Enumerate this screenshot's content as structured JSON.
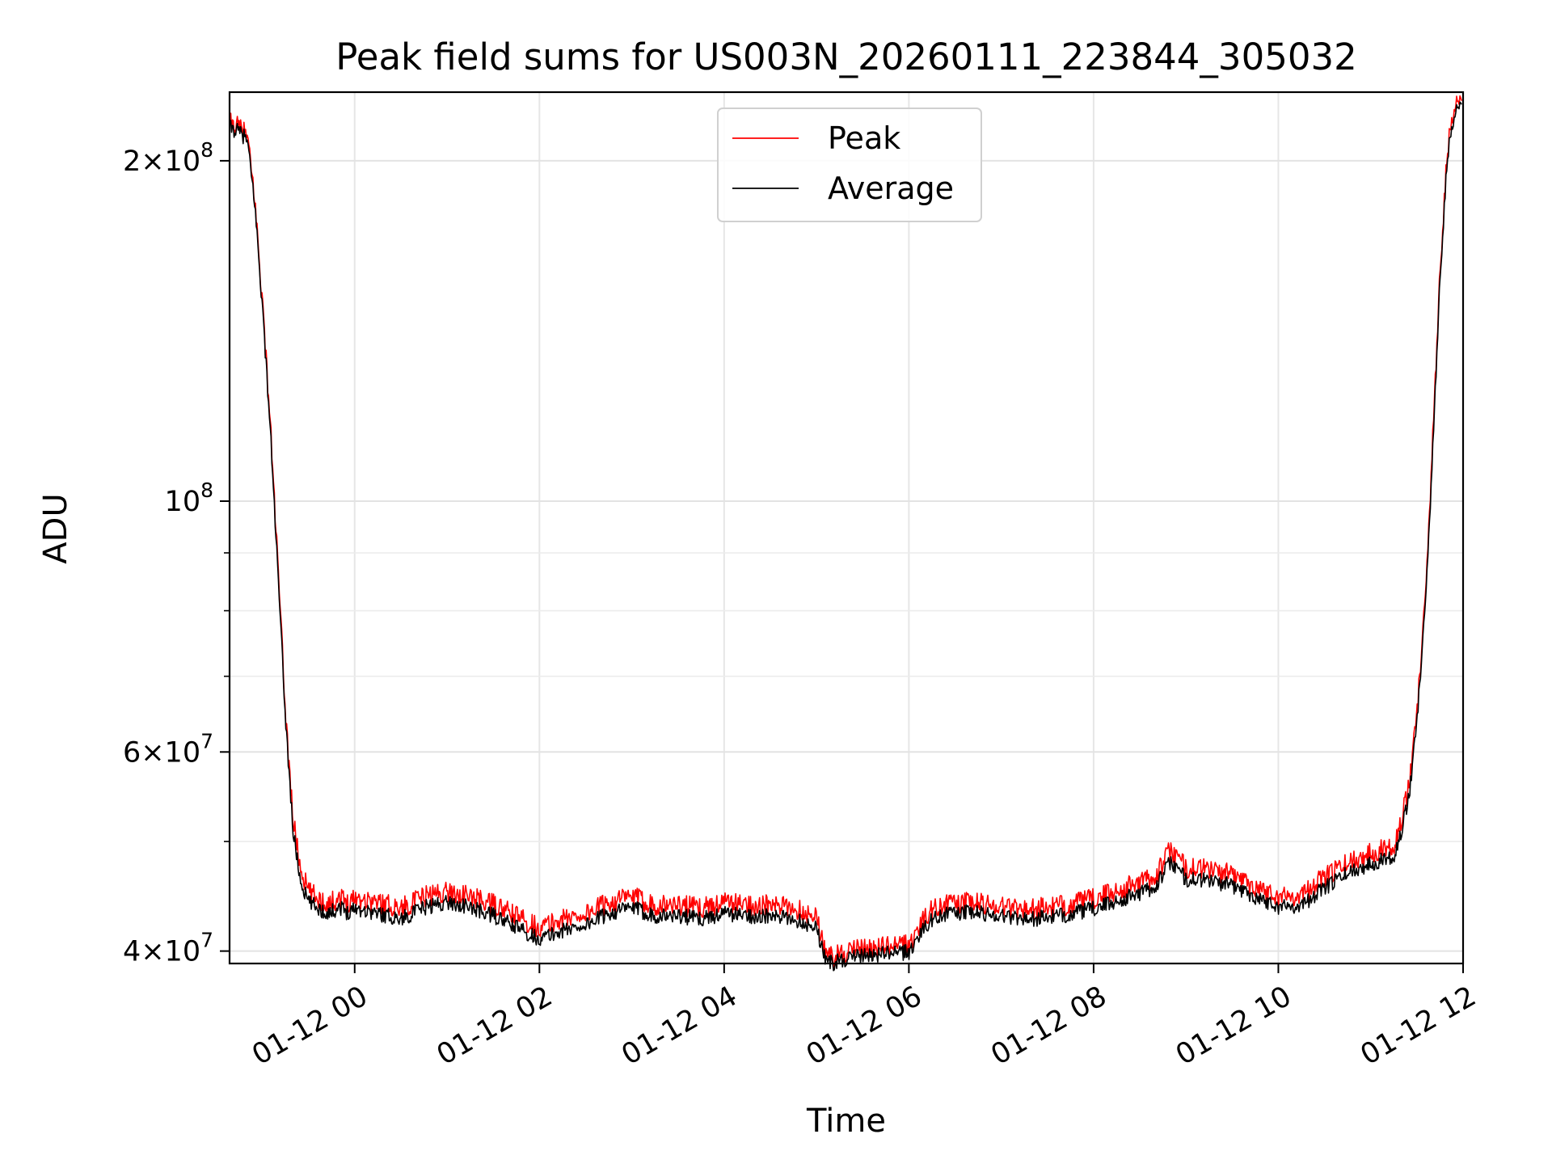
{
  "chart_data": {
    "type": "line",
    "title": "Peak field sums for US003N_20260111_223844_305032",
    "xlabel": "Time",
    "ylabel": "ADU",
    "yscale": "log",
    "grid": true,
    "legend_placement": "top-center",
    "x_ticks": [
      "01-12 00",
      "01-12 02",
      "01-12 04",
      "01-12 06",
      "01-12 08",
      "01-12 10",
      "01-12 12"
    ],
    "y_ticks": [
      {
        "value": 40000000,
        "mantissa": "4",
        "exponent": "7"
      },
      {
        "value": 60000000,
        "mantissa": "6",
        "exponent": "7"
      },
      {
        "value": 100000000,
        "mantissa": "",
        "exponent": "8"
      },
      {
        "value": 200000000,
        "mantissa": "2",
        "exponent": "8"
      }
    ],
    "xlim": [
      "2026-01-11 22:38:44",
      "2026-01-12 12:00:00"
    ],
    "ylim": [
      39000000,
      230000000
    ],
    "series": [
      {
        "name": "Peak",
        "color": "#ff0000",
        "x": [
          "2026-01-11 22:39",
          "2026-01-11 22:45",
          "2026-01-11 22:50",
          "2026-01-11 22:55",
          "2026-01-11 23:00",
          "2026-01-11 23:05",
          "2026-01-11 23:10",
          "2026-01-11 23:15",
          "2026-01-11 23:20",
          "2026-01-11 23:25",
          "2026-01-11 23:30",
          "2026-01-11 23:35",
          "2026-01-11 23:40",
          "2026-01-11 23:45",
          "2026-01-11 23:50",
          "2026-01-11 23:55",
          "2026-01-12 00:00",
          "2026-01-12 00:15",
          "2026-01-12 00:30",
          "2026-01-12 00:45",
          "2026-01-12 01:00",
          "2026-01-12 01:15",
          "2026-01-12 01:30",
          "2026-01-12 01:45",
          "2026-01-12 02:00",
          "2026-01-12 02:15",
          "2026-01-12 02:30",
          "2026-01-12 02:45",
          "2026-01-12 03:00",
          "2026-01-12 03:15",
          "2026-01-12 03:30",
          "2026-01-12 03:45",
          "2026-01-12 04:00",
          "2026-01-12 04:15",
          "2026-01-12 04:30",
          "2026-01-12 04:45",
          "2026-01-12 05:00",
          "2026-01-12 05:05",
          "2026-01-12 05:10",
          "2026-01-12 05:20",
          "2026-01-12 05:30",
          "2026-01-12 05:45",
          "2026-01-12 06:00",
          "2026-01-12 06:10",
          "2026-01-12 06:20",
          "2026-01-12 06:40",
          "2026-01-12 07:00",
          "2026-01-12 07:20",
          "2026-01-12 07:40",
          "2026-01-12 08:00",
          "2026-01-12 08:20",
          "2026-01-12 08:40",
          "2026-01-12 08:50",
          "2026-01-12 09:00",
          "2026-01-12 09:15",
          "2026-01-12 09:30",
          "2026-01-12 09:45",
          "2026-01-12 10:00",
          "2026-01-12 10:15",
          "2026-01-12 10:30",
          "2026-01-12 10:45",
          "2026-01-12 11:00",
          "2026-01-12 11:15",
          "2026-01-12 11:20",
          "2026-01-12 11:25",
          "2026-01-12 11:30",
          "2026-01-12 11:35",
          "2026-01-12 11:40",
          "2026-01-12 11:45",
          "2026-01-12 11:50",
          "2026-01-12 11:55",
          "2026-01-12 11:59"
        ],
        "values": [
          215000000,
          213000000,
          210000000,
          185000000,
          150000000,
          118000000,
          88000000,
          65000000,
          52000000,
          47000000,
          45000000,
          44500000,
          44000000,
          44000000,
          44500000,
          44000000,
          44500000,
          44000000,
          43500000,
          44500000,
          45000000,
          44500000,
          43800000,
          42800000,
          41800000,
          42500000,
          43000000,
          44000000,
          44500000,
          43800000,
          43800000,
          43500000,
          44000000,
          43800000,
          43700000,
          43500000,
          42800000,
          40000000,
          39300000,
          39800000,
          40000000,
          40200000,
          40300000,
          42700000,
          43800000,
          44000000,
          43700000,
          43400000,
          43700000,
          44300000,
          45300000,
          46400000,
          49000000,
          47200000,
          47100000,
          46500000,
          45500000,
          44500000,
          44700000,
          46300000,
          47700000,
          48700000,
          49500000,
          52000000,
          56000000,
          65000000,
          80000000,
          110000000,
          160000000,
          205000000,
          222000000,
          226000000
        ]
      },
      {
        "name": "Average",
        "color": "#000000",
        "x": [
          "2026-01-11 22:39",
          "2026-01-11 22:45",
          "2026-01-11 22:50",
          "2026-01-11 22:55",
          "2026-01-11 23:00",
          "2026-01-11 23:05",
          "2026-01-11 23:10",
          "2026-01-11 23:15",
          "2026-01-11 23:20",
          "2026-01-11 23:25",
          "2026-01-11 23:30",
          "2026-01-11 23:35",
          "2026-01-11 23:40",
          "2026-01-11 23:45",
          "2026-01-11 23:50",
          "2026-01-11 23:55",
          "2026-01-12 00:00",
          "2026-01-12 00:15",
          "2026-01-12 00:30",
          "2026-01-12 00:45",
          "2026-01-12 01:00",
          "2026-01-12 01:15",
          "2026-01-12 01:30",
          "2026-01-12 01:45",
          "2026-01-12 02:00",
          "2026-01-12 02:15",
          "2026-01-12 02:30",
          "2026-01-12 02:45",
          "2026-01-12 03:00",
          "2026-01-12 03:15",
          "2026-01-12 03:30",
          "2026-01-12 03:45",
          "2026-01-12 04:00",
          "2026-01-12 04:15",
          "2026-01-12 04:30",
          "2026-01-12 04:45",
          "2026-01-12 05:00",
          "2026-01-12 05:05",
          "2026-01-12 05:10",
          "2026-01-12 05:20",
          "2026-01-12 05:30",
          "2026-01-12 05:45",
          "2026-01-12 06:00",
          "2026-01-12 06:10",
          "2026-01-12 06:20",
          "2026-01-12 06:40",
          "2026-01-12 07:00",
          "2026-01-12 07:20",
          "2026-01-12 07:40",
          "2026-01-12 08:00",
          "2026-01-12 08:20",
          "2026-01-12 08:40",
          "2026-01-12 08:50",
          "2026-01-12 09:00",
          "2026-01-12 09:15",
          "2026-01-12 09:30",
          "2026-01-12 09:45",
          "2026-01-12 10:00",
          "2026-01-12 10:15",
          "2026-01-12 10:30",
          "2026-01-12 10:45",
          "2026-01-12 11:00",
          "2026-01-12 11:15",
          "2026-01-12 11:20",
          "2026-01-12 11:25",
          "2026-01-12 11:30",
          "2026-01-12 11:35",
          "2026-01-12 11:40",
          "2026-01-12 11:45",
          "2026-01-12 11:50",
          "2026-01-12 11:55",
          "2026-01-12 11:59"
        ],
        "values": [
          214000000,
          212000000,
          209000000,
          184000000,
          149000000,
          117000000,
          87000000,
          64500000,
          51000000,
          46000000,
          44200000,
          43800000,
          43300000,
          43300000,
          43800000,
          43300000,
          43700000,
          43200000,
          42700000,
          43700000,
          44200000,
          43700000,
          43000000,
          42000000,
          41000000,
          41700000,
          42200000,
          43200000,
          43700000,
          43000000,
          43000000,
          42700000,
          43200000,
          43000000,
          42900000,
          42700000,
          42000000,
          39600000,
          39000000,
          39400000,
          39600000,
          39800000,
          39900000,
          42000000,
          43100000,
          43300000,
          43000000,
          42700000,
          43000000,
          43600000,
          44500000,
          45600000,
          48000000,
          46300000,
          46200000,
          45700000,
          44700000,
          43800000,
          43900000,
          45500000,
          46900000,
          47800000,
          48600000,
          51000000,
          55000000,
          64000000,
          79000000,
          108000000,
          158000000,
          203000000,
          220000000,
          225000000
        ]
      }
    ]
  }
}
